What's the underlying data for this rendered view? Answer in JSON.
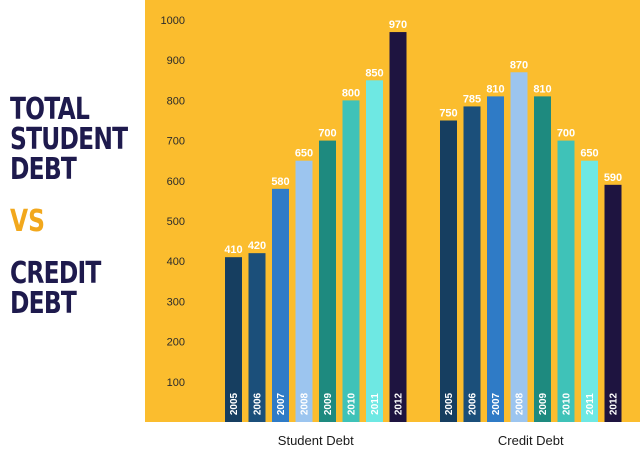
{
  "title": {
    "line1": "TOTAL",
    "line2": "STUDENT",
    "line3": "DEBT",
    "vs": "VS",
    "line4": "CREDIT",
    "line5": "DEBT"
  },
  "colors": {
    "background": "#fbbd2e",
    "title": "#1e1a4d",
    "vs": "#f2a81d",
    "years": [
      "#163e60",
      "#1b4f7a",
      "#2f7bc6",
      "#9cc5ef",
      "#1e8a7f",
      "#3fc2b8",
      "#6ee8e3",
      "#1e1440"
    ]
  },
  "chart_data": {
    "type": "bar",
    "categories": [
      "Student Debt",
      "Credit Debt"
    ],
    "years": [
      "2005",
      "2006",
      "2007",
      "2008",
      "2009",
      "2010",
      "2011",
      "2012"
    ],
    "series": [
      {
        "name": "2005",
        "values": [
          410,
          750
        ]
      },
      {
        "name": "2006",
        "values": [
          420,
          785
        ]
      },
      {
        "name": "2007",
        "values": [
          580,
          810
        ]
      },
      {
        "name": "2008",
        "values": [
          650,
          870
        ]
      },
      {
        "name": "2009",
        "values": [
          700,
          810
        ]
      },
      {
        "name": "2010",
        "values": [
          800,
          700
        ]
      },
      {
        "name": "2011",
        "values": [
          850,
          650
        ]
      },
      {
        "name": "2012",
        "values": [
          970,
          590
        ]
      }
    ],
    "yticks": [
      100,
      200,
      300,
      400,
      500,
      600,
      700,
      800,
      900,
      1000
    ],
    "ylim": [
      0,
      1000
    ],
    "grid": false,
    "legend": "none"
  }
}
